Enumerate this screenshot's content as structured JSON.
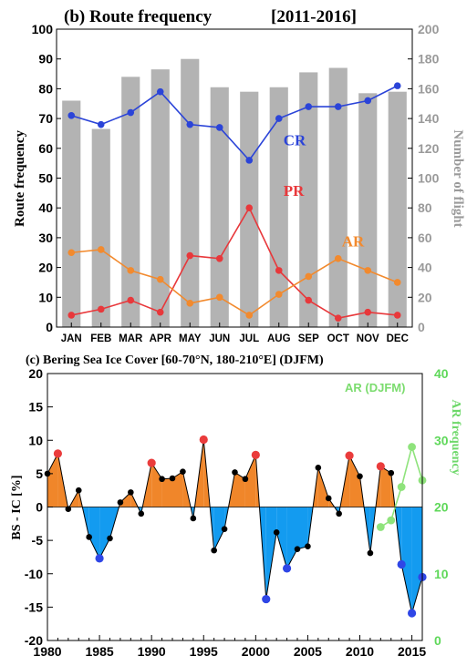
{
  "chart_data": [
    {
      "type": "bar",
      "title_prefix": "(b) Route frequency",
      "title_period": "[2011-2016]",
      "ylabel": "Route frequency",
      "y2label": "Number of flight",
      "ylim": [
        0,
        100
      ],
      "y2lim": [
        0,
        200
      ],
      "yticks": [
        "0",
        "10",
        "20",
        "30",
        "40",
        "50",
        "60",
        "70",
        "80",
        "90",
        "100"
      ],
      "y2ticks": [
        "0",
        "20",
        "40",
        "60",
        "80",
        "100",
        "120",
        "140",
        "160",
        "180",
        "200"
      ],
      "categories": [
        "JAN",
        "FEB",
        "MAR",
        "APR",
        "MAY",
        "JUN",
        "JUL",
        "AUG",
        "SEP",
        "OCT",
        "NOV",
        "DEC"
      ],
      "bars": {
        "axis": "right",
        "color": "#b3b3b3",
        "values": [
          152,
          133,
          168,
          173,
          180,
          161,
          158,
          161,
          171,
          174,
          157,
          158
        ]
      },
      "series": [
        {
          "name": "CR",
          "color": "#2b44d8",
          "values": [
            71,
            68,
            72,
            79,
            68,
            67,
            56,
            70,
            74,
            74,
            76,
            81
          ]
        },
        {
          "name": "PR",
          "color": "#e8383b",
          "values": [
            4,
            6,
            9,
            5,
            24,
            23,
            40,
            19,
            9,
            3,
            5,
            4
          ]
        },
        {
          "name": "AR",
          "color": "#f28a2e",
          "values": [
            25,
            26,
            19,
            16,
            8,
            10,
            4,
            11,
            17,
            23,
            19,
            15
          ]
        }
      ],
      "grid": false
    },
    {
      "type": "area",
      "title": "(c) Bering Sea Ice Cover [60-70°N, 180-210°E] (DJFM)",
      "ylabel": "BS - IC [%]",
      "y2label": "AR frequency",
      "ylim": [
        -20,
        20
      ],
      "y2lim": [
        0,
        40
      ],
      "xlim": [
        1980,
        2016
      ],
      "yticks": [
        "-20",
        "-15",
        "-10",
        "-5",
        "0",
        "5",
        "10",
        "15",
        "20"
      ],
      "y2ticks": [
        "0",
        "10",
        "20",
        "30",
        "40"
      ],
      "xticks": [
        "1980",
        "1985",
        "1990",
        "1995",
        "2000",
        "2005",
        "2010",
        "2015"
      ],
      "positive_color": "#f0862a",
      "negative_color": "#139bf0",
      "x": [
        1980,
        1981,
        1982,
        1983,
        1984,
        1985,
        1986,
        1987,
        1988,
        1989,
        1990,
        1991,
        1992,
        1993,
        1994,
        1995,
        1996,
        1997,
        1998,
        1999,
        2000,
        2001,
        2002,
        2003,
        2004,
        2005,
        2006,
        2007,
        2008,
        2009,
        2010,
        2011,
        2012,
        2013,
        2014,
        2015,
        2016
      ],
      "values": [
        5,
        8,
        -0.3,
        2.5,
        -4.5,
        -7.7,
        -4.7,
        0.7,
        2.2,
        -1,
        6.6,
        4.2,
        4.3,
        5.3,
        -1.7,
        10.1,
        -6.5,
        -3.3,
        5.2,
        4.2,
        7.8,
        -13.8,
        -3.8,
        -9.2,
        -6.3,
        -5.9,
        5.9,
        1.3,
        -1,
        7.7,
        4.6,
        -6.9,
        6.1,
        5.1,
        -8.6,
        -15.9,
        -10.5
      ],
      "highlight_positive": [
        1981,
        1990,
        1995,
        2000,
        2009,
        2012
      ],
      "highlight_negative": [
        1985,
        2001,
        2003,
        2014,
        2015,
        2016
      ],
      "series": [
        {
          "name": "AR (DJFM)",
          "color": "#8fe37c",
          "axis": "right",
          "x": [
            2012,
            2013,
            2014,
            2015,
            2016
          ],
          "values": [
            17,
            18,
            23,
            29,
            24
          ]
        }
      ]
    }
  ]
}
